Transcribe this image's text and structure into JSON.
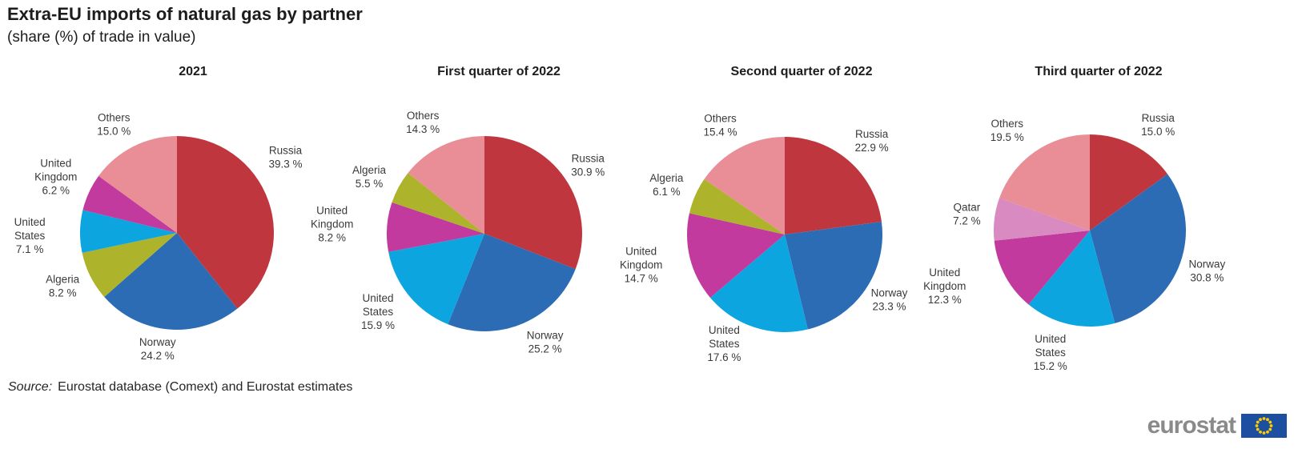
{
  "page": {
    "title": "Extra-EU imports of natural gas by partner",
    "subtitle": "(share (%) of trade in value)",
    "source_prefix": "Source:",
    "source_text": "Eurostat database (Comext) and Eurostat estimates",
    "logo_text": "eurostat"
  },
  "colors": {
    "slices": {
      "Russia": "#c0363f",
      "Norway": "#2c6cb4",
      "United States": "#0da5e0",
      "United Kingdom": "#c23a9d",
      "Algeria": "#adb42c",
      "Qatar": "#d98ac0",
      "Others": "#e98d96"
    },
    "label_text": "#3a3a3a",
    "logo_gray": "#8a8a8a",
    "flag_blue": "#1d4fa1",
    "flag_stars": "#ffcc00"
  },
  "chart_data": {
    "type": "pie",
    "title": "Extra-EU imports of natural gas by partner",
    "subtitle": "(share (%) of trade in value)",
    "unit": "% share of trade in value",
    "start_angle": "12 o'clock, clockwise",
    "legend_position": "labels outside slices",
    "charts": [
      {
        "title": "2021",
        "slices": [
          {
            "name": "Russia",
            "value": 39.3,
            "label_lines": [
              "Russia",
              "39.3 %"
            ],
            "label_off": [
              1.12,
              -0.78
            ]
          },
          {
            "name": "Norway",
            "value": 24.2,
            "label_lines": [
              "Norway",
              "24.2 %"
            ],
            "label_off": [
              -0.2,
              1.2
            ]
          },
          {
            "name": "Algeria",
            "value": 8.2,
            "label_lines": [
              "Algeria",
              "8.2 %"
            ],
            "label_off": [
              -1.18,
              0.55
            ]
          },
          {
            "name": "United States",
            "value": 7.1,
            "label_lines": [
              "United",
              "States",
              "7.1 %"
            ],
            "label_off": [
              -1.52,
              0.03
            ]
          },
          {
            "name": "United Kingdom",
            "value": 6.2,
            "label_lines": [
              "United",
              "Kingdom",
              "6.2 %"
            ],
            "label_off": [
              -1.25,
              -0.58
            ]
          },
          {
            "name": "Others",
            "value": 15.0,
            "label_lines": [
              "Others",
              "15.0 %"
            ],
            "label_off": [
              -0.65,
              -1.12
            ]
          }
        ]
      },
      {
        "title": "First quarter of 2022",
        "slices": [
          {
            "name": "Russia",
            "value": 30.9,
            "label_lines": [
              "Russia",
              "30.9 %"
            ],
            "label_off": [
              1.06,
              -0.7
            ]
          },
          {
            "name": "Norway",
            "value": 25.2,
            "label_lines": [
              "Norway",
              "25.2 %"
            ],
            "label_off": [
              0.62,
              1.11
            ]
          },
          {
            "name": "United States",
            "value": 15.9,
            "label_lines": [
              "United",
              "States",
              "15.9 %"
            ],
            "label_off": [
              -1.09,
              0.8
            ]
          },
          {
            "name": "United Kingdom",
            "value": 8.2,
            "label_lines": [
              "United",
              "Kingdom",
              "8.2 %"
            ],
            "label_off": [
              -1.56,
              -0.1
            ]
          },
          {
            "name": "Algeria",
            "value": 5.5,
            "label_lines": [
              "Algeria",
              "5.5 %"
            ],
            "label_off": [
              -1.18,
              -0.58
            ]
          },
          {
            "name": "Others",
            "value": 14.3,
            "label_lines": [
              "Others",
              "14.3 %"
            ],
            "label_off": [
              -0.63,
              -1.14
            ]
          }
        ]
      },
      {
        "title": "Second quarter of 2022",
        "slices": [
          {
            "name": "Russia",
            "value": 22.9,
            "label_lines": [
              "Russia",
              "22.9 %"
            ],
            "label_off": [
              0.89,
              -0.96
            ]
          },
          {
            "name": "Norway",
            "value": 23.3,
            "label_lines": [
              "Norway",
              "23.3 %"
            ],
            "label_off": [
              1.07,
              0.67
            ]
          },
          {
            "name": "United States",
            "value": 17.6,
            "label_lines": [
              "United",
              "States",
              "17.6 %"
            ],
            "label_off": [
              -0.62,
              1.12
            ]
          },
          {
            "name": "United Kingdom",
            "value": 14.7,
            "label_lines": [
              "United",
              "Kingdom",
              "14.7 %"
            ],
            "label_off": [
              -1.47,
              0.31
            ]
          },
          {
            "name": "Algeria",
            "value": 6.1,
            "label_lines": [
              "Algeria",
              "6.1 %"
            ],
            "label_off": [
              -1.21,
              -0.51
            ]
          },
          {
            "name": "Others",
            "value": 15.4,
            "label_lines": [
              "Others",
              "15.4 %"
            ],
            "label_off": [
              -0.66,
              -1.12
            ]
          }
        ]
      },
      {
        "title": "Third quarter of 2022",
        "slices": [
          {
            "name": "Russia",
            "value": 15.0,
            "label_lines": [
              "Russia",
              "15.0 %"
            ],
            "label_off": [
              0.71,
              -1.1
            ]
          },
          {
            "name": "Norway",
            "value": 30.8,
            "label_lines": [
              "Norway",
              "30.8 %"
            ],
            "label_off": [
              1.22,
              0.42
            ]
          },
          {
            "name": "United States",
            "value": 15.2,
            "label_lines": [
              "United",
              "States",
              "15.2 %"
            ],
            "label_off": [
              -0.41,
              1.27
            ]
          },
          {
            "name": "United Kingdom",
            "value": 12.3,
            "label_lines": [
              "United",
              "Kingdom",
              "12.3 %"
            ],
            "label_off": [
              -1.51,
              0.58
            ]
          },
          {
            "name": "Qatar",
            "value": 7.2,
            "label_lines": [
              "Qatar",
              "7.2 %"
            ],
            "label_off": [
              -1.28,
              -0.17
            ]
          },
          {
            "name": "Others",
            "value": 19.5,
            "label_lines": [
              "Others",
              "19.5 %"
            ],
            "label_off": [
              -0.86,
              -1.04
            ]
          }
        ]
      }
    ]
  }
}
